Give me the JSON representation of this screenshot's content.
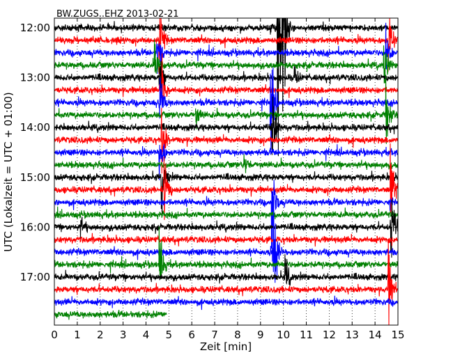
{
  "chart_data": {
    "type": "line",
    "title": "BW.ZUGS..EHZ 2013-02-21",
    "xlabel": "Zeit  [min]",
    "ylabel": "UTC (Lokalzeit = UTC + 01:00)",
    "xlim": [
      0,
      15
    ],
    "x_ticks": [
      "0",
      "1",
      "2",
      "3",
      "4",
      "5",
      "6",
      "7",
      "8",
      "9",
      "10",
      "11",
      "12",
      "13",
      "14",
      "15"
    ],
    "y_tick_labels": [
      "12:00",
      "13:00",
      "14:00",
      "15:00",
      "16:00",
      "17:00"
    ],
    "trace_interval_minutes": 15,
    "first_trace": "12:00",
    "trace_count": 24,
    "last_trace_length_min": 4.9,
    "color_cycle": [
      "#000000",
      "#ff0000",
      "#0000ff",
      "#008000"
    ],
    "grid": true,
    "events": [
      {
        "trace": 0,
        "t": 9.45,
        "amp": 0.5
      },
      {
        "trace": 0,
        "t": 9.75,
        "amp": 12
      },
      {
        "trace": 0,
        "t": 9.95,
        "amp": 12
      },
      {
        "trace": 1,
        "t": 4.6,
        "amp": 3
      },
      {
        "trace": 1,
        "t": 14.6,
        "amp": 3
      },
      {
        "trace": 2,
        "t": 4.5,
        "amp": 2
      },
      {
        "trace": 2,
        "t": 14.5,
        "amp": 2
      },
      {
        "trace": 3,
        "t": 4.4,
        "amp": 2
      },
      {
        "trace": 3,
        "t": 14.4,
        "amp": 2
      },
      {
        "trace": 4,
        "t": 4.6,
        "amp": 2.5
      },
      {
        "trace": 4,
        "t": 10.5,
        "amp": 0.8
      },
      {
        "trace": 5,
        "t": 4.7,
        "amp": 2.5
      },
      {
        "trace": 6,
        "t": 4.6,
        "amp": 2.5
      },
      {
        "trace": 6,
        "t": 9.45,
        "amp": 4
      },
      {
        "trace": 7,
        "t": 6.2,
        "amp": 0.9
      },
      {
        "trace": 7,
        "t": 14.5,
        "amp": 3
      },
      {
        "trace": 8,
        "t": 9.5,
        "amp": 4
      },
      {
        "trace": 9,
        "t": 4.7,
        "amp": 2.5
      },
      {
        "trace": 10,
        "t": 4.6,
        "amp": 2.5
      },
      {
        "trace": 11,
        "t": 8.3,
        "amp": 0.9
      },
      {
        "trace": 12,
        "t": 4.7,
        "amp": 2.5
      },
      {
        "trace": 13,
        "t": 4.8,
        "amp": 3
      },
      {
        "trace": 13,
        "t": 14.7,
        "amp": 3
      },
      {
        "trace": 14,
        "t": 9.5,
        "amp": 4
      },
      {
        "trace": 16,
        "t": 1.15,
        "amp": 0.9
      },
      {
        "trace": 16,
        "t": 14.7,
        "amp": 3
      },
      {
        "trace": 18,
        "t": 9.6,
        "amp": 4
      },
      {
        "trace": 19,
        "t": 4.6,
        "amp": 3
      },
      {
        "trace": 20,
        "t": 10.1,
        "amp": 1.5
      },
      {
        "trace": 21,
        "t": 14.6,
        "amp": 3
      }
    ]
  }
}
